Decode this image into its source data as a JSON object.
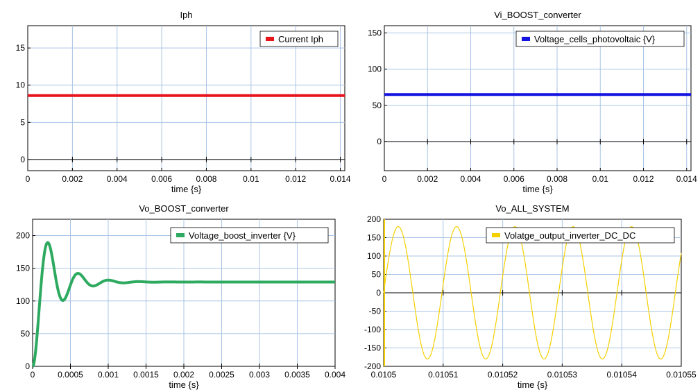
{
  "chart_data": [
    {
      "type": "line",
      "title": "Iph",
      "xlabel": "time {s}",
      "ylabel": "",
      "xlim": [
        0,
        0.0142
      ],
      "ylim": [
        -1.5,
        18.0
      ],
      "xticks": [
        0,
        0.002,
        0.004,
        0.006,
        0.008,
        0.01,
        0.012,
        0.014
      ],
      "xtick_labels": [
        "0",
        "0.002",
        "0.004",
        "0.006",
        "0.008",
        "0.01",
        "0.012",
        "0.014"
      ],
      "yticks": [
        0,
        5,
        10,
        15
      ],
      "ytick_labels": [
        "0",
        "5",
        "10",
        "15"
      ],
      "grid": true,
      "legend_position": "top-right",
      "series": [
        {
          "name": "Current Iph",
          "color": "#e8141b",
          "kind": "constant",
          "value": 8.6,
          "x_start": 0,
          "x_end": 0.0142,
          "stroke": 4
        }
      ]
    },
    {
      "type": "line",
      "title": "Vi_BOOST_converter",
      "xlabel": "time {s}",
      "ylabel": "",
      "xlim": [
        0,
        0.0142
      ],
      "ylim": [
        -40,
        160
      ],
      "xticks": [
        0,
        0.002,
        0.004,
        0.006,
        0.008,
        0.01,
        0.012,
        0.014
      ],
      "xtick_labels": [
        "0",
        "0.002",
        "0.004",
        "0.006",
        "0.008",
        "0.01",
        "0.012",
        "0.014"
      ],
      "yticks": [
        0,
        50,
        100,
        150
      ],
      "ytick_labels": [
        "0",
        "50",
        "100",
        "150"
      ],
      "grid": true,
      "legend_position": "top-right",
      "series": [
        {
          "name": "Voltage_cells_photovoltaic {V}",
          "color": "#1414e0",
          "kind": "constant",
          "value": 65,
          "x_start": 0,
          "x_end": 0.0142,
          "stroke": 4
        }
      ]
    },
    {
      "type": "line",
      "title": "Vo_BOOST_converter",
      "xlabel": "time {s}",
      "ylabel": "",
      "xlim": [
        0,
        0.004
      ],
      "ylim": [
        0,
        225
      ],
      "xticks": [
        0,
        0.0005,
        0.001,
        0.0015,
        0.002,
        0.0025,
        0.003,
        0.0035,
        0.004
      ],
      "xtick_labels": [
        "0",
        "0.0005",
        "0.001",
        "0.0015",
        "0.002",
        "0.0025",
        "0.003",
        "0.0035",
        "0.004"
      ],
      "yticks": [
        0,
        50,
        100,
        150,
        200
      ],
      "ytick_labels": [
        "0",
        "50",
        "100",
        "150",
        "200"
      ],
      "grid": true,
      "legend_position": "top-right",
      "series": [
        {
          "name": "Voltage_boost_inverter {V}",
          "color": "#2daa5f",
          "kind": "damped-step",
          "final": 129,
          "overshoot": 59,
          "peak_time": 0.0002,
          "decay": 3800,
          "x_start": 0,
          "x_end": 0.004,
          "stroke": 4
        }
      ]
    },
    {
      "type": "line",
      "title": "Vo_ALL_SYSTEM",
      "xlabel": "time {s}",
      "ylabel": "",
      "xlim": [
        0.0105,
        0.01055
      ],
      "ylim": [
        -200,
        200
      ],
      "xticks": [
        0.0105,
        0.01051,
        0.01052,
        0.01053,
        0.01054,
        0.01055
      ],
      "xtick_labels": [
        "0.0105",
        "0.01051",
        "0.01052",
        "0.01053",
        "0.01054",
        "0.01055"
      ],
      "yticks": [
        -200,
        -150,
        -100,
        -50,
        0,
        50,
        100,
        150,
        200
      ],
      "ytick_labels": [
        "-200",
        "-150",
        "-100",
        "-50",
        "0",
        "50",
        "100",
        "150",
        "200"
      ],
      "grid": true,
      "legend_position": "top-right",
      "series": [
        {
          "name": "Volatge_output_inverter_DC_DC",
          "color": "#f5d000",
          "kind": "sine",
          "amplitude": 180,
          "period": 9.8e-06,
          "phase_start": 0.0105,
          "x_start": 0.0105,
          "x_end": 0.01055,
          "stroke": 1.2
        }
      ]
    }
  ]
}
